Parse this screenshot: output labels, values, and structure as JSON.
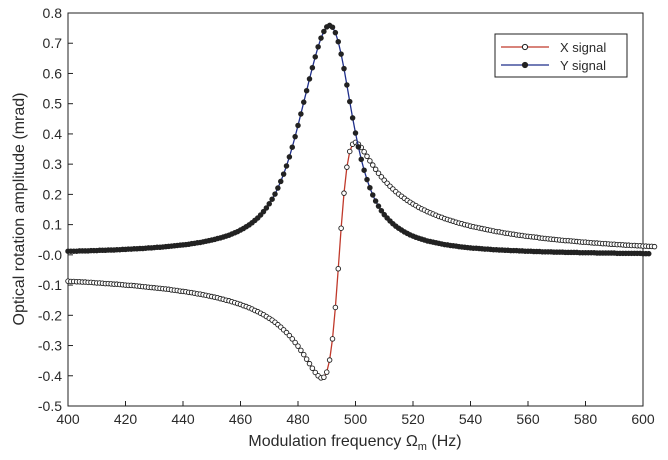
{
  "chart_data": {
    "type": "line",
    "xlabel": "Modulation frequency",
    "xlabel_symbol": "Ω",
    "xlabel_subscript": "m",
    "xlabel_unit": "(Hz)",
    "ylabel": "Optical rotation amplitude (mrad)",
    "xlim": [
      400,
      600
    ],
    "ylim": [
      -0.5,
      0.8
    ],
    "x_ticks": [
      "400",
      "420",
      "440",
      "460",
      "480",
      "500",
      "520",
      "540",
      "560",
      "580",
      "600"
    ],
    "y_ticks": [
      "0.8",
      "0.7",
      "0.6",
      "0.5",
      "0.4",
      "0.3",
      "0.2",
      "0.1",
      "-0.0",
      "-0.1",
      "-0.2",
      "-0.3",
      "-0.4",
      "-0.5"
    ],
    "grid": false,
    "legend_position": "top-right",
    "x_start": 400,
    "x_step": 1,
    "series": [
      {
        "name": "X signal",
        "line_color": "#c0392b",
        "marker": "open-circle",
        "values": [
          -0.087,
          -0.088,
          -0.088,
          -0.089,
          -0.089,
          -0.09,
          -0.09,
          -0.091,
          -0.091,
          -0.092,
          -0.093,
          -0.093,
          -0.094,
          -0.095,
          -0.095,
          -0.096,
          -0.097,
          -0.097,
          -0.098,
          -0.099,
          -0.1,
          -0.101,
          -0.101,
          -0.102,
          -0.103,
          -0.104,
          -0.105,
          -0.106,
          -0.107,
          -0.108,
          -0.109,
          -0.11,
          -0.111,
          -0.112,
          -0.113,
          -0.114,
          -0.116,
          -0.117,
          -0.118,
          -0.12,
          -0.121,
          -0.122,
          -0.124,
          -0.125,
          -0.127,
          -0.129,
          -0.13,
          -0.132,
          -0.134,
          -0.136,
          -0.138,
          -0.14,
          -0.142,
          -0.145,
          -0.147,
          -0.15,
          -0.152,
          -0.155,
          -0.158,
          -0.161,
          -0.164,
          -0.168,
          -0.171,
          -0.175,
          -0.179,
          -0.184,
          -0.188,
          -0.193,
          -0.198,
          -0.204,
          -0.21,
          -0.216,
          -0.223,
          -0.231,
          -0.239,
          -0.248,
          -0.257,
          -0.267,
          -0.278,
          -0.29,
          -0.302,
          -0.316,
          -0.33,
          -0.345,
          -0.36,
          -0.375,
          -0.389,
          -0.4,
          -0.407,
          -0.405,
          -0.388,
          -0.348,
          -0.278,
          -0.174,
          -0.046,
          0.088,
          0.204,
          0.29,
          0.342,
          0.366,
          0.372,
          0.366,
          0.355,
          0.341,
          0.326,
          0.311,
          0.297,
          0.283,
          0.27,
          0.258,
          0.247,
          0.237,
          0.227,
          0.218,
          0.209,
          0.201,
          0.194,
          0.187,
          0.18,
          0.174,
          0.168,
          0.163,
          0.157,
          0.152,
          0.148,
          0.143,
          0.139,
          0.135,
          0.131,
          0.127,
          0.124,
          0.12,
          0.117,
          0.114,
          0.111,
          0.108,
          0.105,
          0.103,
          0.1,
          0.098,
          0.095,
          0.093,
          0.091,
          0.089,
          0.087,
          0.085,
          0.083,
          0.081,
          0.079,
          0.077,
          0.076,
          0.074,
          0.072,
          0.071,
          0.069,
          0.068,
          0.066,
          0.065,
          0.064,
          0.062,
          0.061,
          0.06,
          0.059,
          0.058,
          0.056,
          0.055,
          0.054,
          0.053,
          0.052,
          0.051,
          0.05,
          0.049,
          0.048,
          0.047,
          0.047,
          0.046,
          0.045,
          0.044,
          0.043,
          0.042,
          0.042,
          0.041,
          0.04,
          0.039,
          0.039,
          0.038,
          0.037,
          0.037,
          0.036,
          0.035,
          0.035,
          0.034,
          0.034,
          0.033,
          0.032,
          0.032,
          0.031,
          0.031,
          0.03,
          0.03,
          0.029,
          0.029,
          0.028,
          0.028,
          0.027
        ]
      },
      {
        "name": "Y signal",
        "line_color": "#1f2f8a",
        "marker": "filled-circle",
        "values": [
          0.012,
          0.012,
          0.012,
          0.012,
          0.013,
          0.013,
          0.013,
          0.013,
          0.014,
          0.014,
          0.014,
          0.015,
          0.015,
          0.015,
          0.016,
          0.016,
          0.016,
          0.017,
          0.017,
          0.018,
          0.018,
          0.019,
          0.019,
          0.02,
          0.02,
          0.021,
          0.021,
          0.022,
          0.023,
          0.023,
          0.024,
          0.025,
          0.025,
          0.026,
          0.027,
          0.028,
          0.029,
          0.03,
          0.031,
          0.032,
          0.033,
          0.034,
          0.035,
          0.037,
          0.038,
          0.04,
          0.041,
          0.043,
          0.045,
          0.047,
          0.049,
          0.051,
          0.054,
          0.056,
          0.059,
          0.062,
          0.065,
          0.069,
          0.073,
          0.077,
          0.082,
          0.087,
          0.093,
          0.099,
          0.106,
          0.114,
          0.122,
          0.132,
          0.143,
          0.155,
          0.169,
          0.184,
          0.201,
          0.221,
          0.243,
          0.267,
          0.294,
          0.324,
          0.356,
          0.391,
          0.428,
          0.466,
          0.505,
          0.543,
          0.582,
          0.619,
          0.655,
          0.688,
          0.717,
          0.739,
          0.754,
          0.759,
          0.753,
          0.735,
          0.705,
          0.664,
          0.616,
          0.562,
          0.507,
          0.453,
          0.403,
          0.357,
          0.316,
          0.28,
          0.249,
          0.222,
          0.198,
          0.178,
          0.161,
          0.146,
          0.133,
          0.122,
          0.112,
          0.103,
          0.095,
          0.088,
          0.082,
          0.076,
          0.071,
          0.066,
          0.062,
          0.058,
          0.055,
          0.052,
          0.049,
          0.046,
          0.044,
          0.042,
          0.04,
          0.038,
          0.036,
          0.034,
          0.033,
          0.031,
          0.03,
          0.029,
          0.027,
          0.026,
          0.025,
          0.024,
          0.023,
          0.022,
          0.022,
          0.021,
          0.02,
          0.019,
          0.019,
          0.018,
          0.017,
          0.017,
          0.016,
          0.016,
          0.015,
          0.015,
          0.014,
          0.014,
          0.014,
          0.013,
          0.013,
          0.012,
          0.012,
          0.012,
          0.011,
          0.011,
          0.011,
          0.01,
          0.01,
          0.01,
          0.01,
          0.009,
          0.009,
          0.009,
          0.009,
          0.008,
          0.008,
          0.008,
          0.008,
          0.008,
          0.007,
          0.007,
          0.007,
          0.007,
          0.007,
          0.007,
          0.006,
          0.006,
          0.006,
          0.006,
          0.006,
          0.006,
          0.006,
          0.005,
          0.005,
          0.005,
          0.005,
          0.005,
          0.005,
          0.005,
          0.005,
          0.005,
          0.004,
          0.004,
          0.004
        ]
      }
    ]
  }
}
